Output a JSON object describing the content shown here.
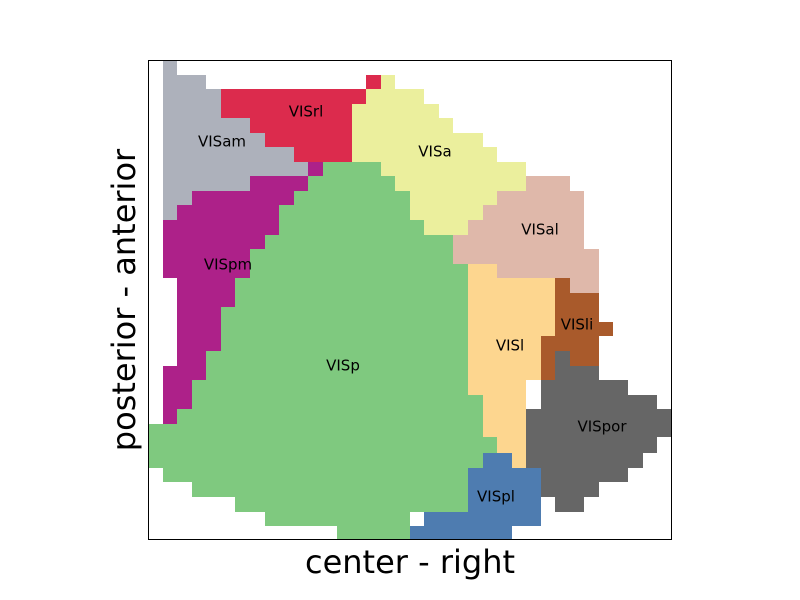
{
  "chart_data": {
    "type": "heatmap",
    "title": "",
    "xlabel": "center - right",
    "ylabel": "posterior - anterior",
    "ticks": "none",
    "regions": [
      {
        "name": "VISp",
        "color": "#7fc97f"
      },
      {
        "name": "VISam",
        "color": "#adb1bb"
      },
      {
        "name": "VISrl",
        "color": "#dc2b4d"
      },
      {
        "name": "VISa",
        "color": "#ebef9d"
      },
      {
        "name": "VISal",
        "color": "#dfb8aa"
      },
      {
        "name": "VISpm",
        "color": "#ad2189"
      },
      {
        "name": "VISl",
        "color": "#fdd68f"
      },
      {
        "name": "VISli",
        "color": "#a95a2b"
      },
      {
        "name": "VISpor",
        "color": "#666666"
      },
      {
        "name": "VISpl",
        "color": "#4e7cb0"
      }
    ]
  }
}
